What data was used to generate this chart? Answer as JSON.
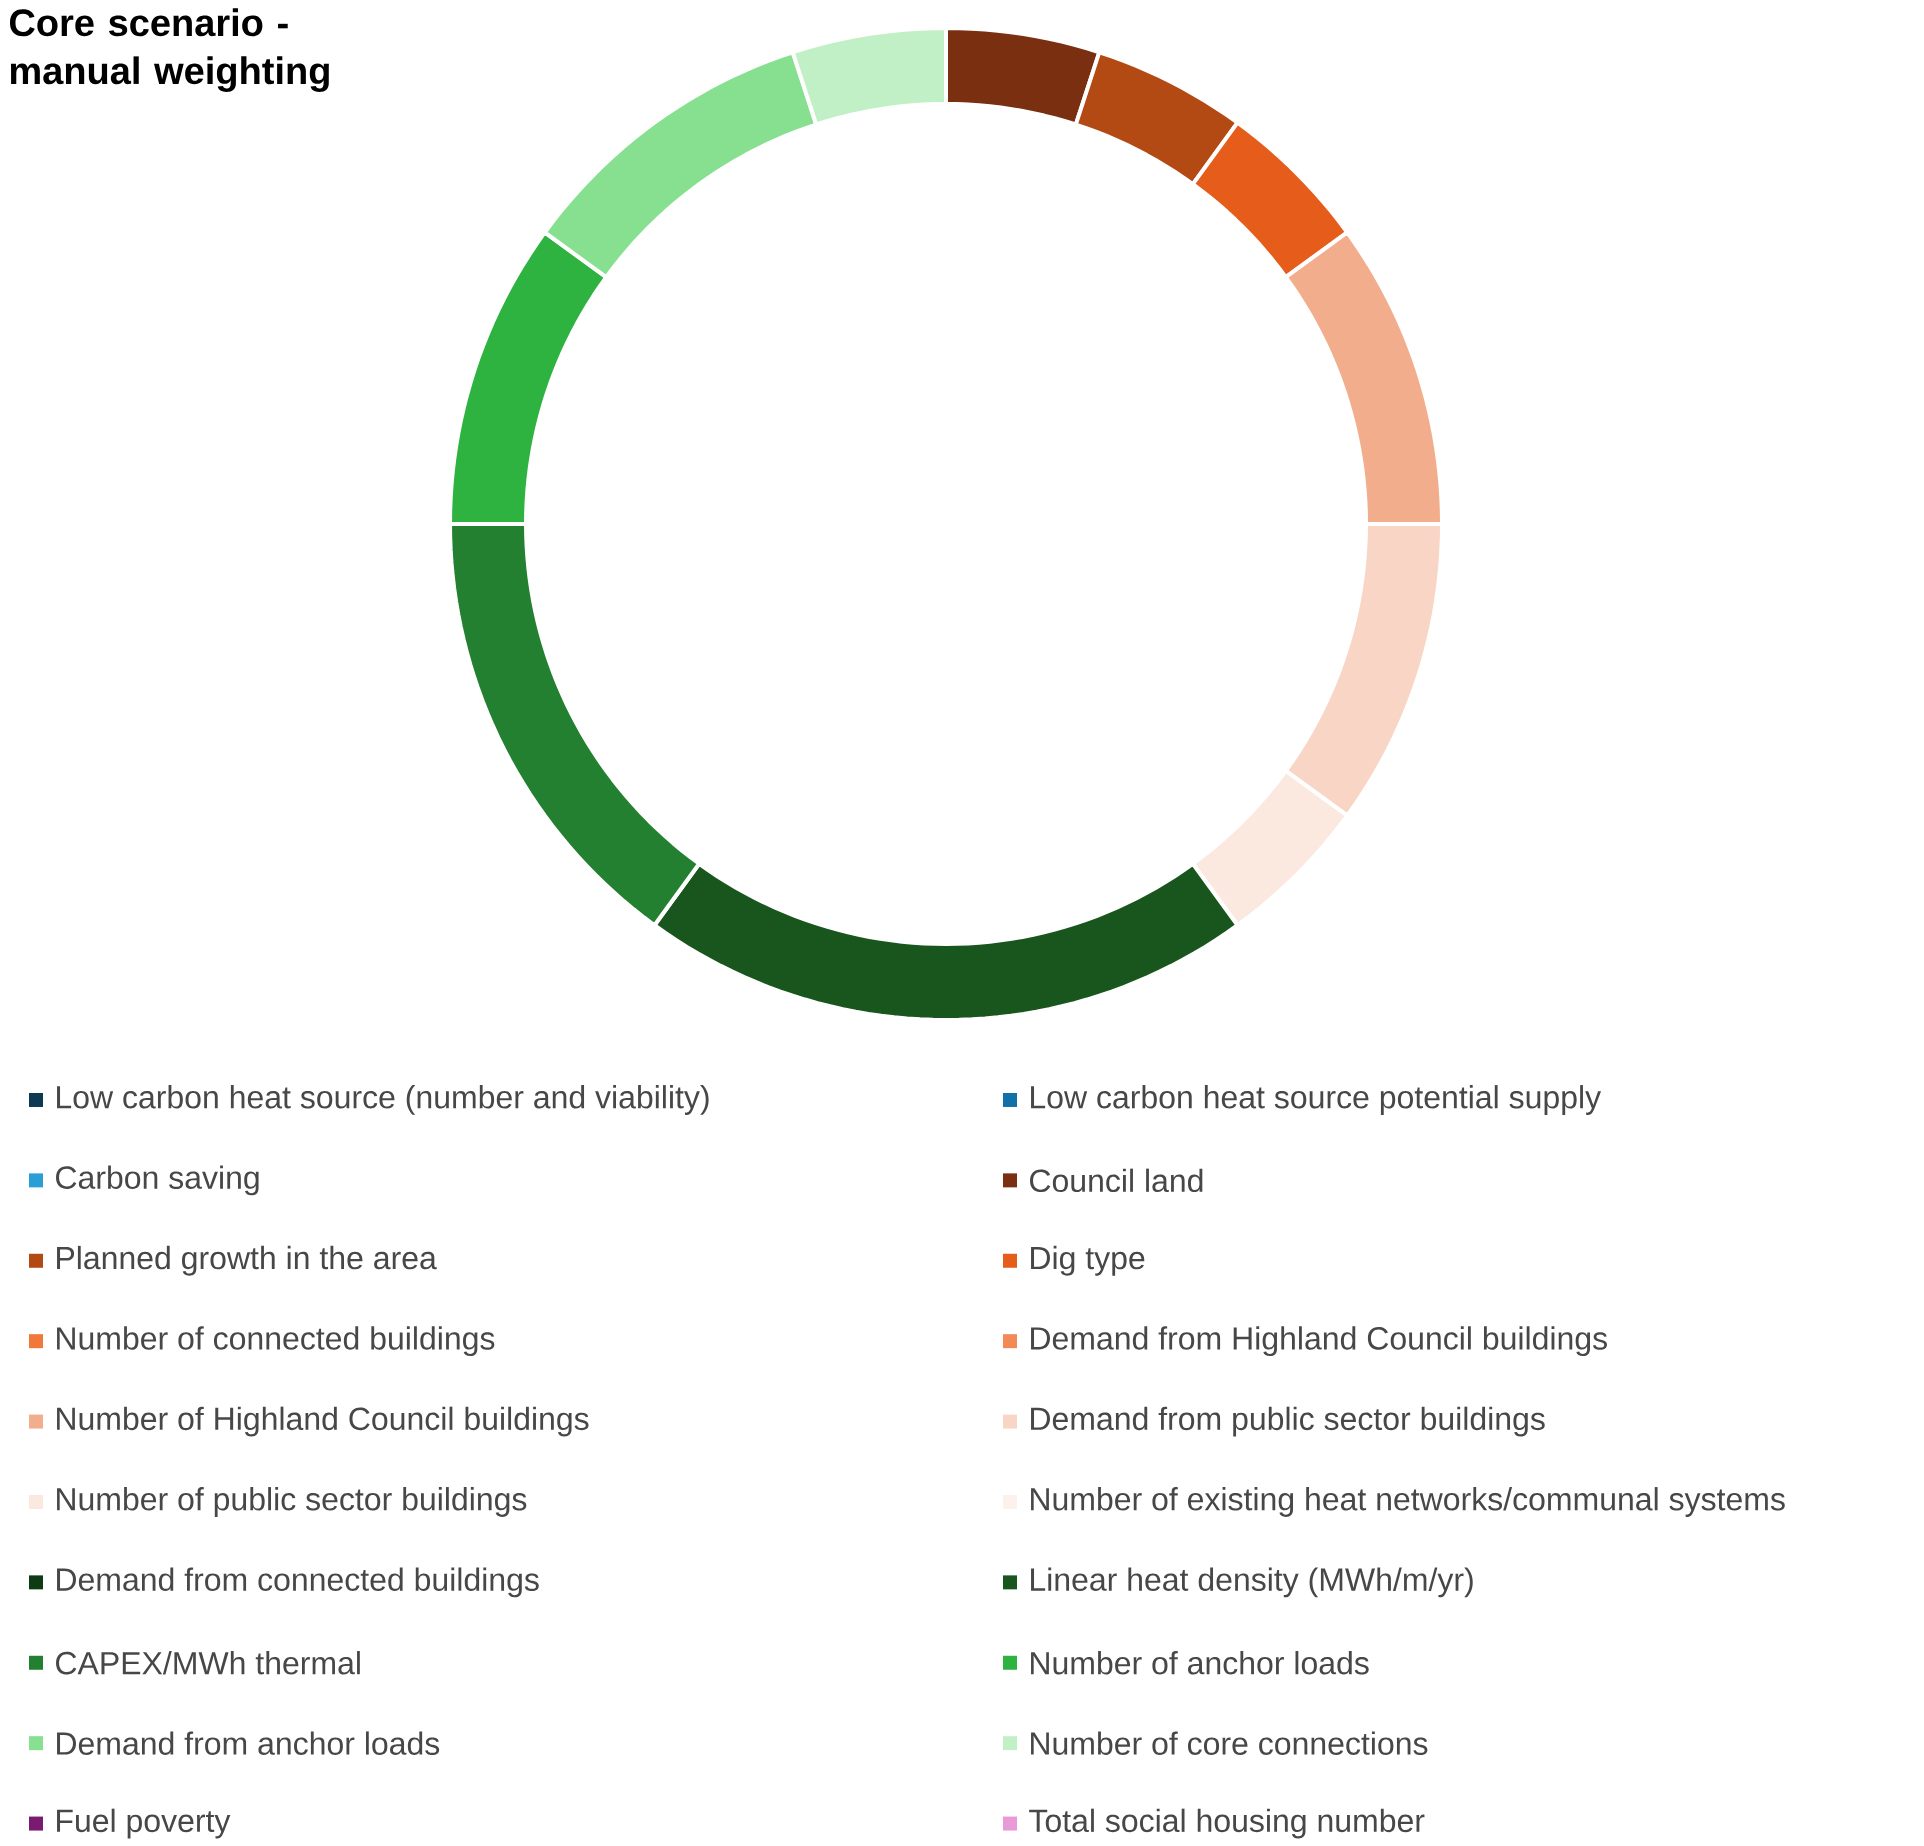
{
  "chart_data": {
    "type": "donut",
    "title": "Core scenario - manual weighting",
    "legend": "bottom",
    "categories": [
      "Low carbon heat source (number and viability)",
      "Low carbon heat source potential supply",
      "Carbon saving",
      "Council land",
      "Planned growth in the area",
      "Dig type",
      "Number of connected buildings",
      "Demand from Highland Council buildings",
      "Number of Highland Council buildings",
      "Demand from public sector buildings",
      "Number of public sector buildings",
      "Number of existing heat networks/communal systems",
      "Demand from connected buildings",
      "Linear heat density (MWh/m/yr)",
      "CAPEX/MWh thermal",
      "Number of anchor loads",
      "Demand from anchor loads",
      "Number of core connections",
      "Fuel poverty",
      "Total social housing number"
    ],
    "values": [
      0,
      0,
      0,
      5,
      5,
      5,
      0,
      0,
      10,
      10,
      5,
      0,
      0,
      20,
      15,
      10,
      10,
      5,
      0,
      0
    ],
    "colors": [
      "#0b3a52",
      "#1170a8",
      "#2a9fd6",
      "#7a3010",
      "#b34a14",
      "#e65c1a",
      "#f07838",
      "#f38a55",
      "#f2ae8c",
      "#f8d5c5",
      "#fbe8df",
      "#fdf1ec",
      "#0e3a14",
      "#19561e",
      "#228030",
      "#2eb340",
      "#86e090",
      "#c2f0c6",
      "#7a1a70",
      "#e89ad8"
    ]
  }
}
